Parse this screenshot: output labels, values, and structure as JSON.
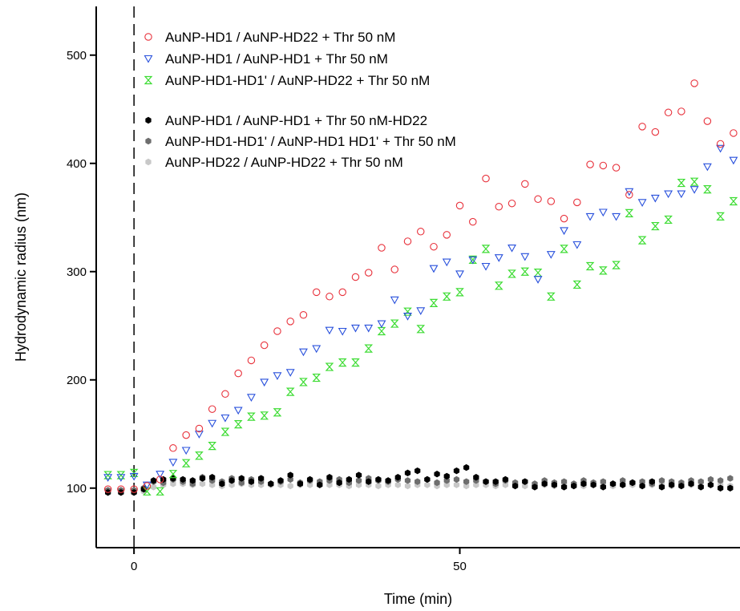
{
  "chart_data": {
    "type": "scatter",
    "title": "",
    "xlabel": "Time (min)",
    "ylabel": "Hydrodynamic radius (nm)",
    "xlim": [
      -5.8,
      93
    ],
    "ylim": [
      45,
      545
    ],
    "xticks": [
      0,
      50
    ],
    "xtick_labels": [
      "0",
      "50"
    ],
    "yticks": [
      100,
      200,
      300,
      400,
      500
    ],
    "ytick_labels": [
      "100",
      "200",
      "300",
      "400",
      "500"
    ],
    "grid": false,
    "legend_position": "top-left",
    "annotations": [
      {
        "type": "vertical-dashed-line",
        "x": 0
      }
    ],
    "series": [
      {
        "name": "AuNP-HD1 / AuNP-HD22 + Thr 50 nM",
        "marker": "open-circle",
        "color": "#e8323c",
        "x": [
          -4,
          -2,
          0,
          2,
          4,
          6,
          8,
          10,
          12,
          14,
          16,
          18,
          20,
          22,
          24,
          26,
          28,
          30,
          32,
          34,
          36,
          38,
          40,
          42,
          44,
          46,
          48,
          50,
          52,
          54,
          56,
          58,
          60,
          62,
          64,
          66,
          68,
          70,
          72,
          74,
          76,
          78,
          80,
          82,
          84,
          86,
          88,
          90,
          92
        ],
        "y": [
          99,
          99,
          99,
          102,
          108,
          137,
          149,
          155,
          173,
          187,
          206,
          218,
          232,
          245,
          254,
          260,
          281,
          277,
          281,
          295,
          299,
          322,
          302,
          328,
          337,
          323,
          334,
          361,
          346,
          386,
          360,
          363,
          381,
          367,
          365,
          349,
          364,
          399,
          398,
          396,
          371,
          434,
          429,
          447,
          448,
          474,
          439,
          418,
          428
        ]
      },
      {
        "name": "AuNP-HD1 / AuNP-HD1 + Thr 50 nM",
        "marker": "open-triangle-down",
        "color": "#2850dc",
        "x": [
          -4,
          -2,
          0,
          2,
          4,
          6,
          8,
          10,
          12,
          14,
          16,
          18,
          20,
          22,
          24,
          26,
          28,
          30,
          32,
          34,
          36,
          38,
          40,
          42,
          44,
          46,
          48,
          50,
          52,
          54,
          56,
          58,
          60,
          62,
          64,
          66,
          68,
          70,
          72,
          74,
          76,
          78,
          80,
          82,
          84,
          86,
          88,
          90,
          92
        ],
        "y": [
          110,
          110,
          111,
          103,
          113,
          124,
          135,
          150,
          160,
          165,
          172,
          184,
          198,
          204,
          207,
          226,
          229,
          246,
          245,
          248,
          248,
          252,
          274,
          259,
          264,
          303,
          309,
          298,
          311,
          305,
          313,
          322,
          314,
          293,
          316,
          338,
          325,
          351,
          355,
          351,
          374,
          364,
          368,
          372,
          372,
          376,
          397,
          414,
          403
        ]
      },
      {
        "name": "AuNP-HD1-HD1' / AuNP-HD22 + Thr 50 nM",
        "marker": "hourglass",
        "color": "#3cdc32",
        "x": [
          -4,
          -2,
          0,
          2,
          4,
          6,
          8,
          10,
          12,
          14,
          16,
          18,
          20,
          22,
          24,
          26,
          28,
          30,
          32,
          34,
          36,
          38,
          40,
          42,
          44,
          46,
          48,
          50,
          52,
          54,
          56,
          58,
          60,
          62,
          64,
          66,
          68,
          70,
          72,
          74,
          76,
          78,
          80,
          82,
          84,
          86,
          88,
          90,
          92
        ],
        "y": [
          112,
          112,
          114,
          97,
          97,
          113,
          123,
          130,
          139,
          152,
          159,
          166,
          167,
          170,
          189,
          198,
          202,
          212,
          216,
          216,
          229,
          245,
          252,
          263,
          247,
          271,
          277,
          281,
          311,
          321,
          287,
          298,
          300,
          299,
          277,
          321,
          288,
          305,
          301,
          306,
          354,
          329,
          342,
          348,
          382,
          383,
          376,
          351,
          365
        ]
      },
      {
        "name": "AuNP-HD1 / AuNP-HD1 + Thr 50 nM-HD22",
        "marker": "filled-hexagon",
        "color": "#000000",
        "x": [
          -4,
          -2,
          0,
          1.5,
          3,
          4.5,
          6,
          7.5,
          9,
          10.5,
          12,
          13.5,
          15,
          16.5,
          18,
          19.5,
          21,
          22.5,
          24,
          25.5,
          27,
          28.5,
          30,
          31.5,
          33,
          34.5,
          36,
          37.5,
          39,
          40.5,
          42,
          43.5,
          45,
          46.5,
          48,
          49.5,
          51,
          52.5,
          54,
          55.5,
          57,
          58.5,
          60,
          61.5,
          63,
          64.5,
          66,
          67.5,
          69,
          70.5,
          72,
          73.5,
          75,
          76.5,
          78,
          79.5,
          81,
          82.5,
          84,
          85.5,
          87,
          88.5,
          90,
          91.5
        ],
        "y": [
          96,
          96,
          96,
          99,
          107,
          108,
          109,
          108,
          107,
          109,
          110,
          104,
          107,
          109,
          106,
          109,
          104,
          107,
          112,
          104,
          108,
          103,
          110,
          105,
          108,
          112,
          106,
          108,
          107,
          110,
          114,
          116,
          108,
          113,
          111,
          116,
          119,
          110,
          106,
          106,
          108,
          102,
          106,
          101,
          104,
          103,
          101,
          102,
          104,
          103,
          101,
          104,
          103,
          105,
          102,
          106,
          101,
          103,
          102,
          104,
          101,
          103,
          100,
          100
        ]
      },
      {
        "name": "AuNP-HD1-HD1' / AuNP-HD1 HD1' + Thr 50 nM",
        "marker": "filled-hexagon",
        "color": "#6e6e6e",
        "x": [
          -4,
          -2,
          0,
          1.5,
          3,
          4.5,
          6,
          7.5,
          9,
          10.5,
          12,
          13.5,
          15,
          16.5,
          18,
          19.5,
          21,
          22.5,
          24,
          25.5,
          27,
          28.5,
          30,
          31.5,
          33,
          34.5,
          36,
          37.5,
          39,
          40.5,
          42,
          43.5,
          45,
          46.5,
          48,
          49.5,
          51,
          52.5,
          54,
          55.5,
          57,
          58.5,
          60,
          61.5,
          63,
          64.5,
          66,
          67.5,
          69,
          70.5,
          72,
          73.5,
          75,
          76.5,
          78,
          79.5,
          81,
          82.5,
          84,
          85.5,
          87,
          88.5,
          90,
          91.5
        ],
        "y": [
          98,
          98,
          98,
          100,
          106,
          105,
          108,
          106,
          104,
          110,
          107,
          106,
          109,
          105,
          108,
          106,
          104,
          106,
          108,
          105,
          107,
          106,
          107,
          108,
          105,
          107,
          109,
          107,
          106,
          108,
          107,
          106,
          108,
          105,
          107,
          108,
          106,
          107,
          106,
          104,
          107,
          105,
          106,
          104,
          107,
          105,
          106,
          104,
          107,
          105,
          106,
          104,
          107,
          105,
          106,
          104,
          107,
          106,
          105,
          107,
          106,
          108,
          107,
          109
        ]
      },
      {
        "name": "AuNP-HD22 / AuNP-HD22 + Thr 50 nM",
        "marker": "filled-hexagon",
        "color": "#c8c8c8",
        "x": [
          -4,
          -2,
          0,
          1.5,
          3,
          4.5,
          6,
          7.5,
          9,
          10.5,
          12,
          13.5,
          15,
          16.5,
          18,
          19.5,
          21,
          22.5,
          24,
          25.5,
          27,
          28.5,
          30,
          31.5,
          33,
          34.5,
          36,
          37.5,
          39,
          40.5,
          42,
          43.5,
          45,
          46.5,
          48,
          49.5,
          51,
          52.5,
          54,
          55.5,
          57,
          58.5,
          60,
          61.5,
          63,
          64.5,
          66,
          67.5,
          69,
          70.5,
          72,
          73.5,
          75,
          76.5,
          78,
          79.5,
          81,
          82.5,
          84,
          85.5,
          87,
          88.5,
          90,
          91.5
        ],
        "y": [
          96,
          96,
          97,
          97,
          101,
          103,
          104,
          104,
          103,
          104,
          103,
          102,
          103,
          104,
          103,
          103,
          103,
          103,
          102,
          103,
          103,
          103,
          103,
          103,
          102,
          103,
          103,
          102,
          103,
          103,
          102,
          103,
          103,
          102,
          103,
          103,
          102,
          103,
          103,
          102,
          103,
          103,
          102,
          103,
          103,
          102,
          103,
          103,
          102,
          103,
          103,
          102,
          103,
          103,
          102,
          103,
          103,
          102,
          103,
          103,
          102,
          103,
          103,
          102
        ]
      }
    ]
  }
}
